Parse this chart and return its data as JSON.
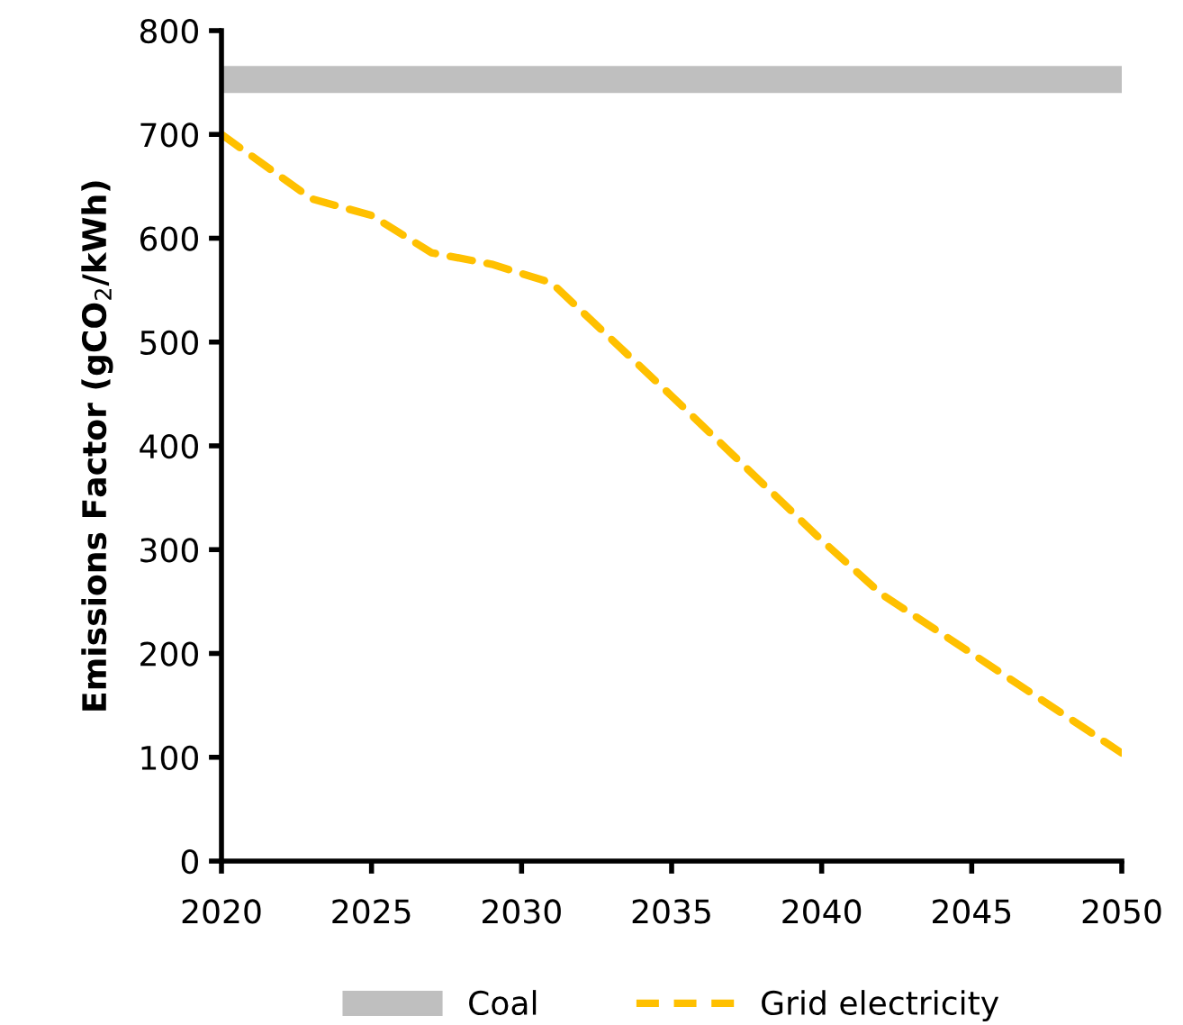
{
  "chart_data": {
    "type": "line",
    "ylabel": "Emissions Factor (gCO$_{2}$/kWh)",
    "x": [
      2020,
      2023,
      2025,
      2027,
      2029,
      2031,
      2035,
      2040,
      2042,
      2045,
      2050
    ],
    "series": [
      {
        "name": "Grid electricity",
        "color": "#ffc000",
        "line_style": "dashed",
        "values": [
          700,
          638,
          622,
          586,
          575,
          557,
          448,
          309,
          257,
          200,
          104
        ]
      }
    ],
    "bands": [
      {
        "axis": "y",
        "from": 740,
        "to": 766,
        "label": "Coal",
        "color": "#bfbfbf"
      }
    ],
    "xlim": [
      2020,
      2050
    ],
    "xticks": [
      2020,
      2025,
      2030,
      2035,
      2040,
      2045,
      2050
    ],
    "ylim": [
      0,
      800
    ],
    "yticks": [
      0,
      100,
      200,
      300,
      400,
      500,
      600,
      700,
      800
    ],
    "grid": false,
    "legend": "bottom",
    "marker": "none"
  }
}
